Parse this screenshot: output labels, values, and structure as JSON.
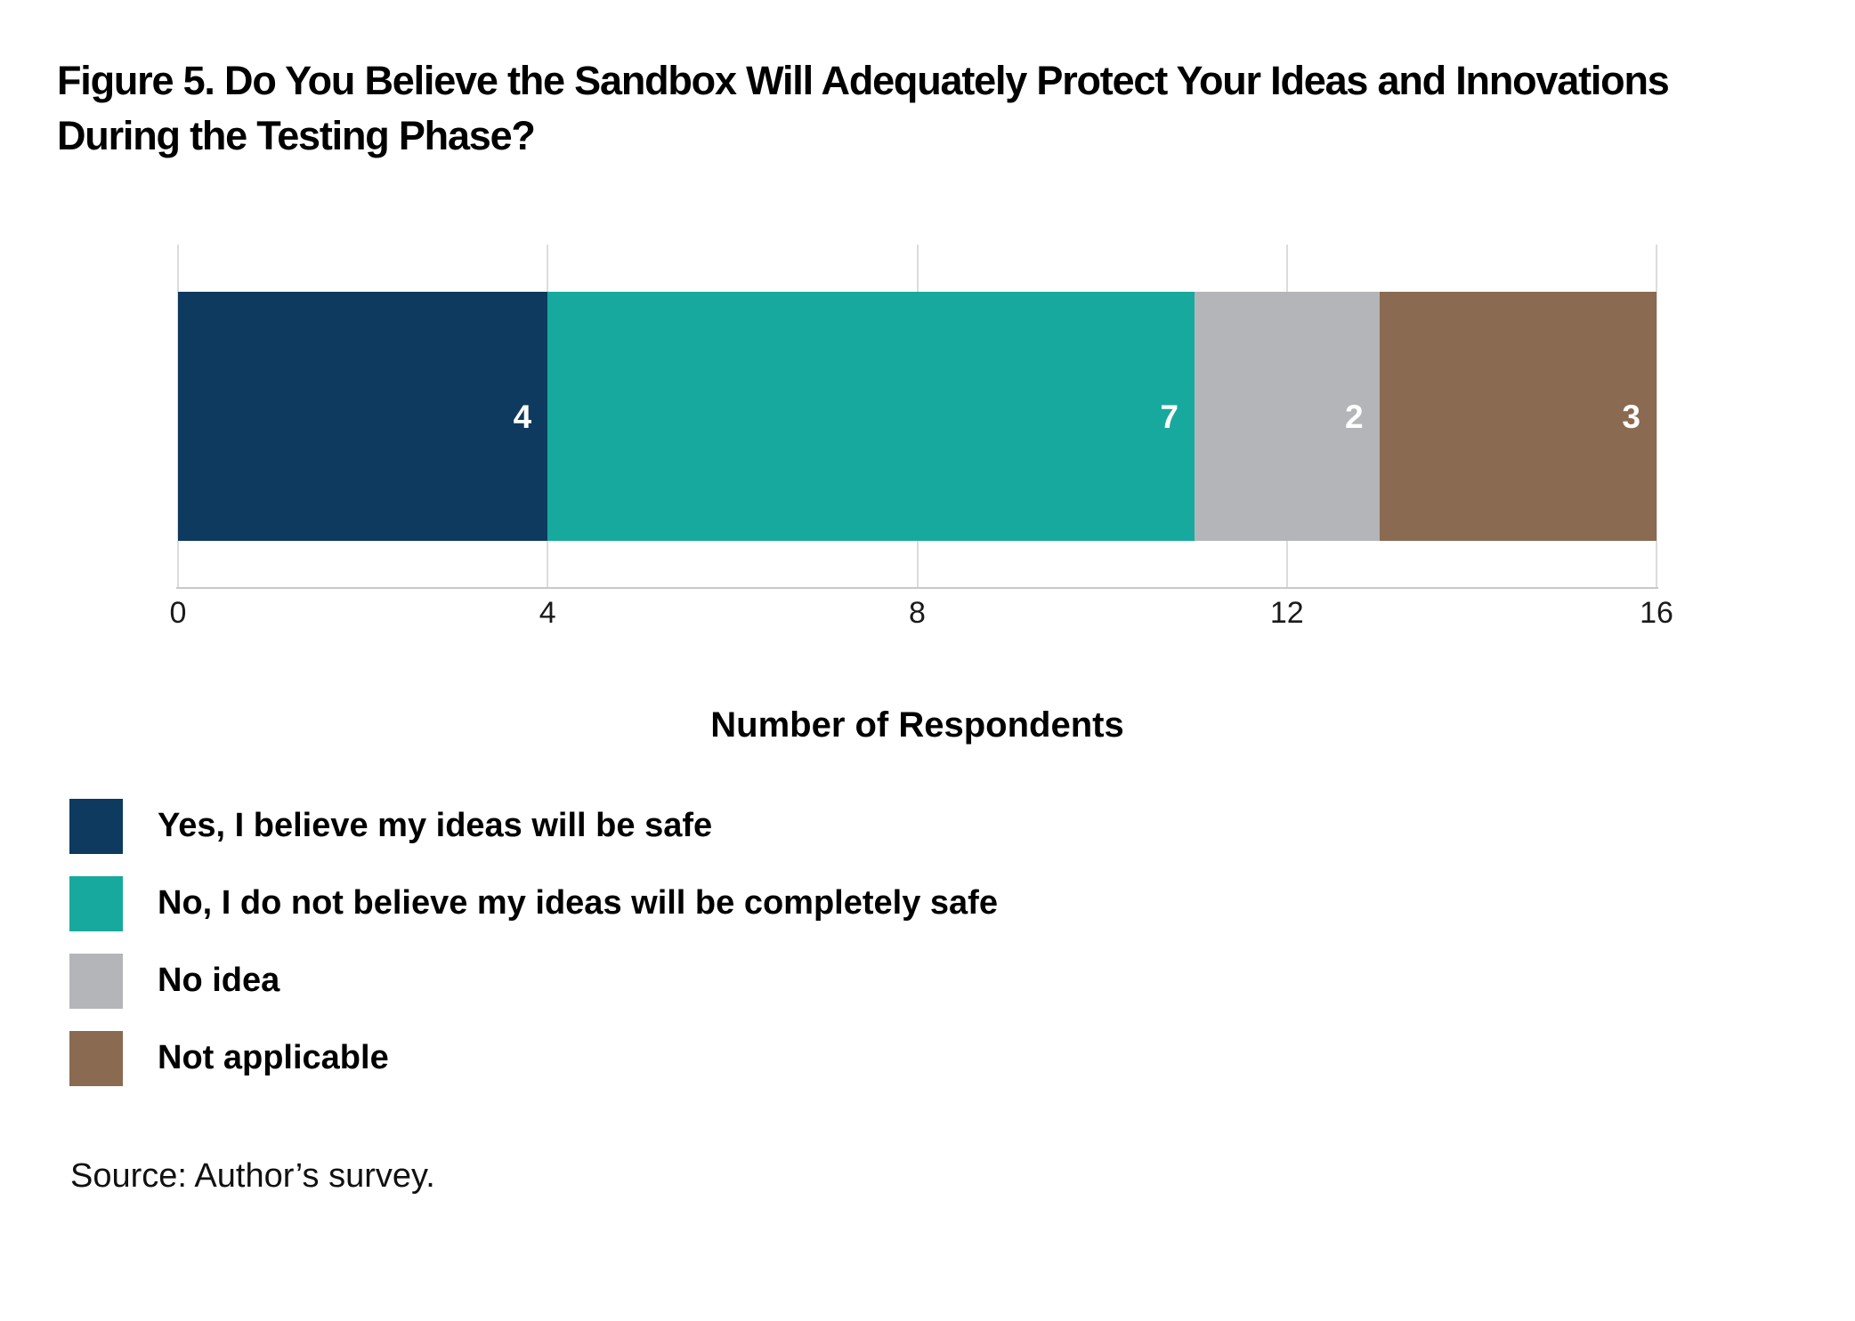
{
  "figure": {
    "title": "Figure 5. Do You Believe the Sandbox Will Adequately Protect Your Ideas and Innovations During the Testing Phase?",
    "source": "Source: Author’s survey."
  },
  "chart_data": {
    "type": "bar",
    "subtype": "horizontal-stacked-single-bar",
    "title": "Figure 5. Do You Believe the Sandbox Will Adequately Protect Your Ideas and Innovations During the Testing Phase?",
    "xlabel": "Number of Respondents",
    "ylabel": "",
    "xlim": [
      0,
      16
    ],
    "xticks": [
      0,
      4,
      8,
      12,
      16
    ],
    "grid": true,
    "legend_position": "bottom-left",
    "value_labels_on_bar": true,
    "value_label_color": "#ffffff",
    "series": [
      {
        "name": "Yes, I believe my ideas will be safe",
        "value": 4,
        "color": "#0d3a5e"
      },
      {
        "name": "No, I do not believe my ideas will be completely safe",
        "value": 7,
        "color": "#18a99e"
      },
      {
        "name": "No idea",
        "value": 2,
        "color": "#b4b5b8"
      },
      {
        "name": "Not applicable",
        "value": 3,
        "color": "#8a6a50"
      }
    ],
    "colors": {
      "gridline": "#dcdcdd",
      "axis_line": "#c9c9c9",
      "tick_text": "#1a1a1a",
      "title_text": "#000000"
    }
  }
}
